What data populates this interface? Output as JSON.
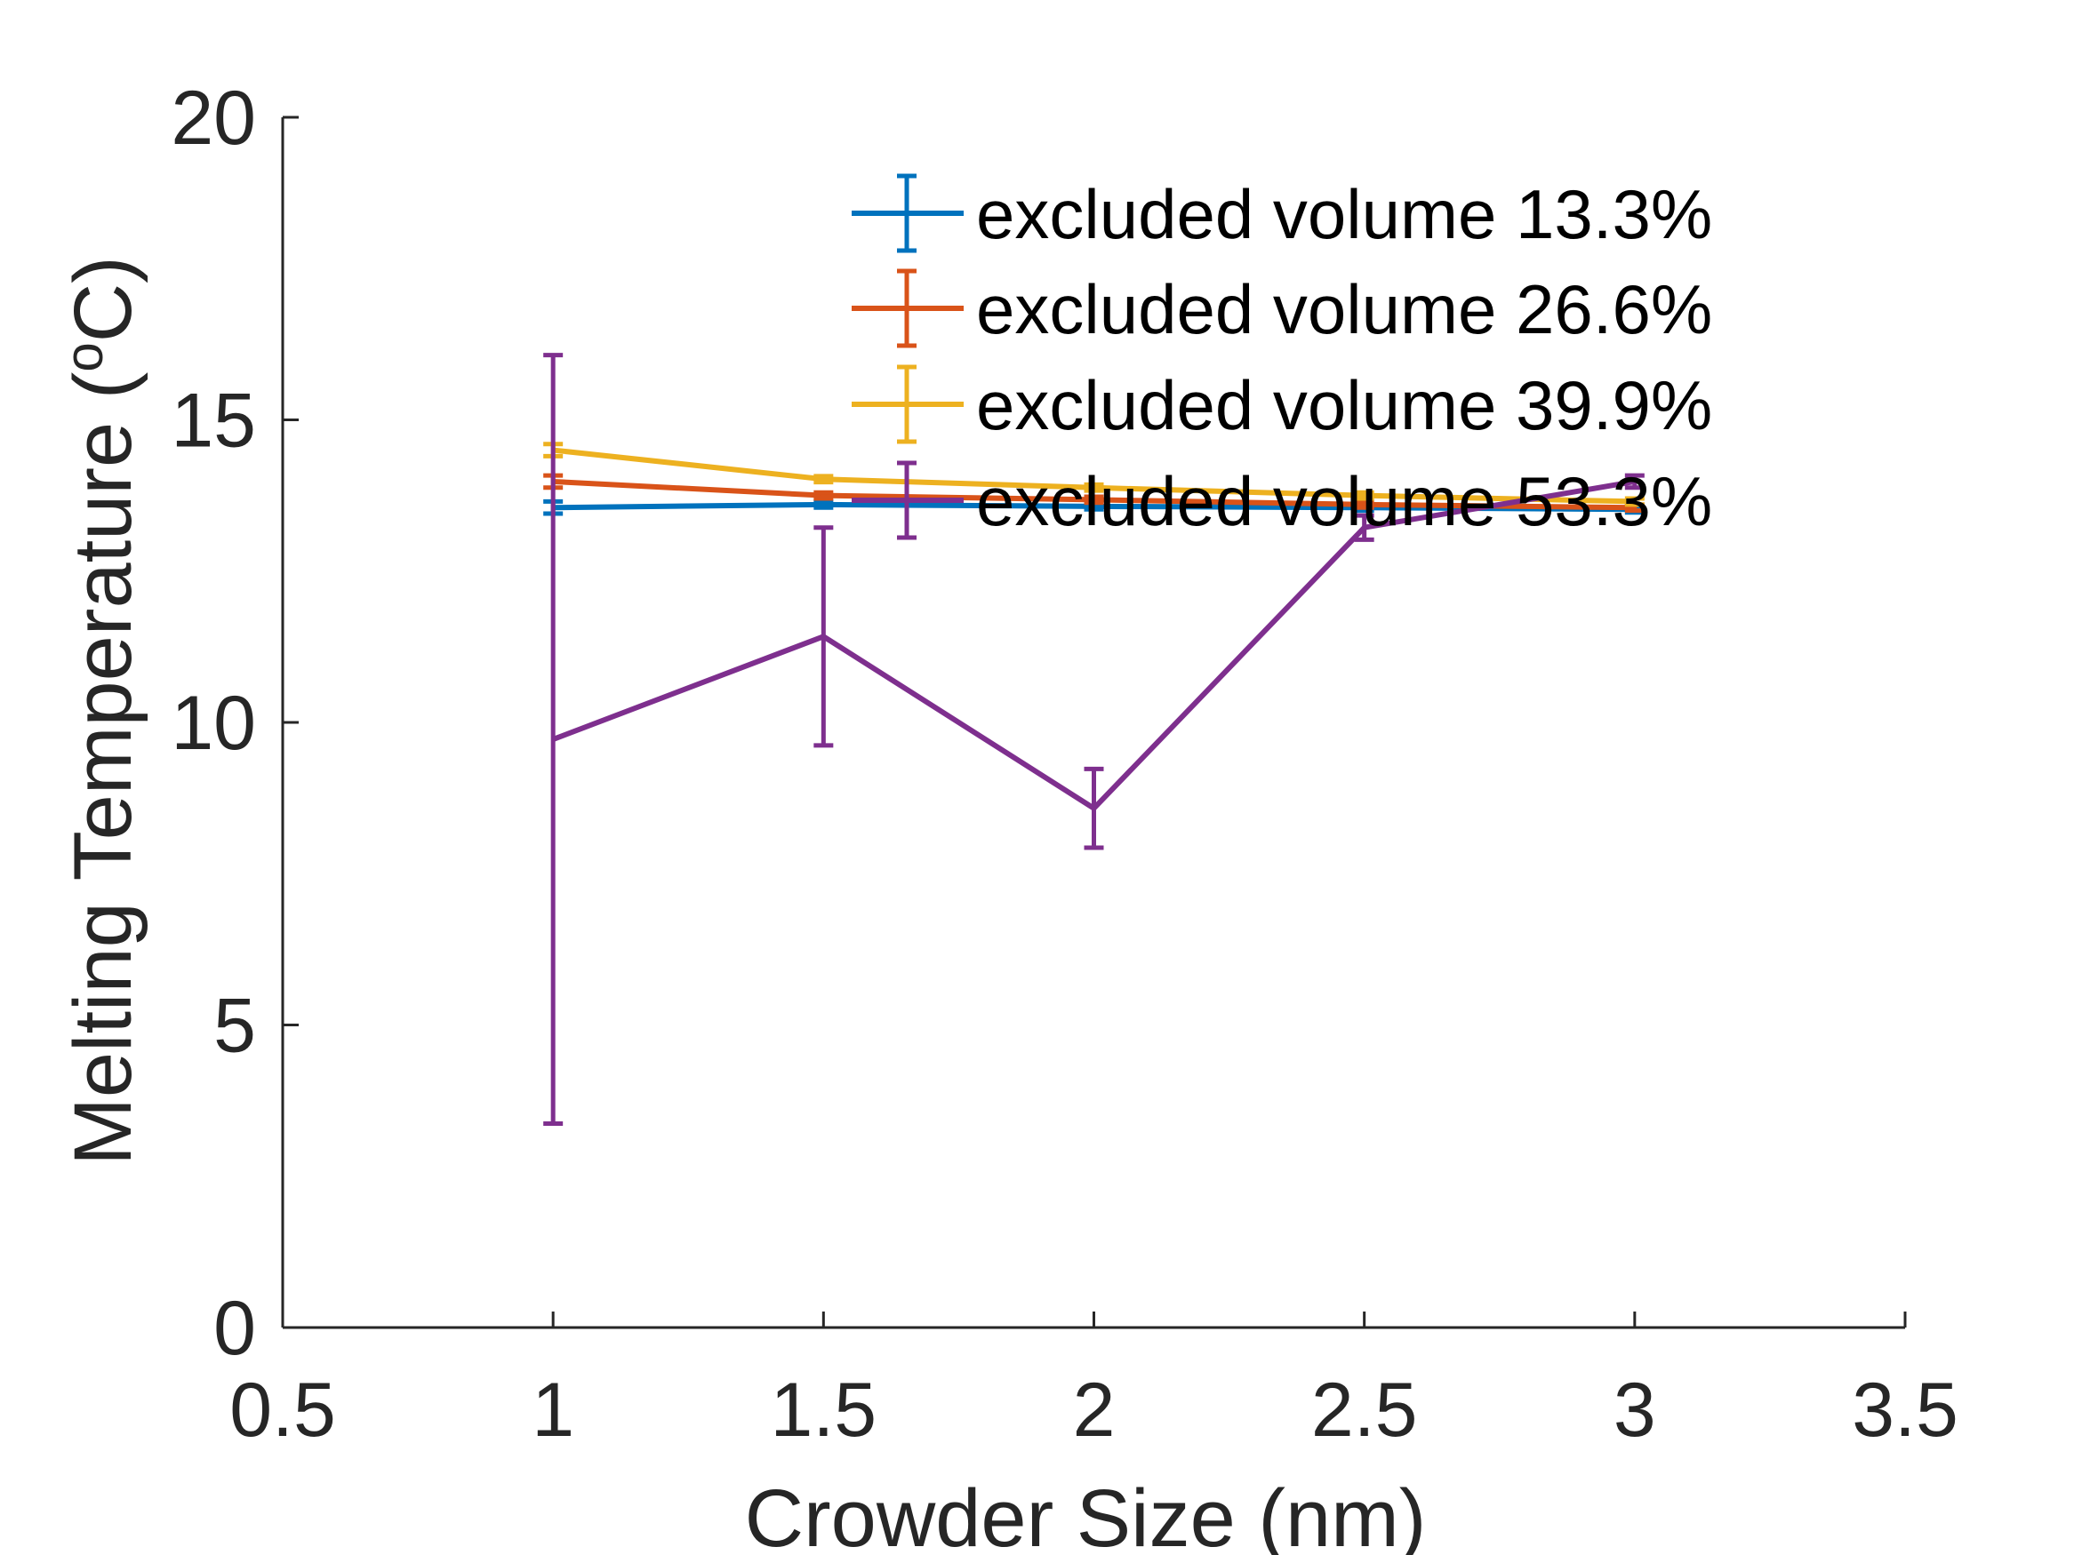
{
  "chart_data": {
    "type": "line",
    "xlabel": "Crowder Size (nm)",
    "ylabel_main": "Melting Temperature (",
    "ylabel_sup": "o",
    "ylabel_end": "C)",
    "xlim": [
      0.5,
      3.5
    ],
    "ylim": [
      0,
      20
    ],
    "xticks": [
      0.5,
      1,
      1.5,
      2,
      2.5,
      3,
      3.5
    ],
    "xtick_labels": [
      "0.5",
      "1",
      "1.5",
      "2",
      "2.5",
      "3",
      "3.5"
    ],
    "yticks": [
      0,
      5,
      10,
      15,
      20
    ],
    "ytick_labels": [
      "0",
      "5",
      "10",
      "15",
      "20"
    ],
    "grid": false,
    "legend_position": "top-right",
    "x": [
      1,
      1.5,
      2,
      2.5,
      3
    ],
    "series": [
      {
        "name": "excluded volume 13.3%",
        "color": "#0072BD",
        "values": [
          13.55,
          13.6,
          13.57,
          13.55,
          13.52
        ],
        "errors": [
          0.1,
          0.05,
          0.05,
          0.05,
          0.05
        ]
      },
      {
        "name": "excluded volume 26.6%",
        "color": "#D95319",
        "values": [
          13.98,
          13.75,
          13.68,
          13.6,
          13.55
        ],
        "errors": [
          0.1,
          0.05,
          0.05,
          0.05,
          0.05
        ]
      },
      {
        "name": "excluded volume 39.9%",
        "color": "#EDB120",
        "values": [
          14.5,
          14.02,
          13.88,
          13.75,
          13.65
        ],
        "errors": [
          0.1,
          0.05,
          0.05,
          0.05,
          0.05
        ]
      },
      {
        "name": "excluded volume 53.3%",
        "color": "#7E2F8E",
        "values": [
          9.72,
          11.42,
          8.58,
          13.22,
          13.98
        ],
        "errors": [
          6.35,
          1.8,
          0.65,
          0.2,
          0.1
        ]
      }
    ]
  }
}
